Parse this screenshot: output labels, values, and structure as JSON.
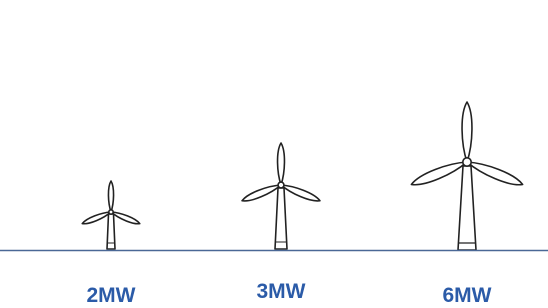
{
  "labels": [
    "2MW",
    "3MW",
    "6MW"
  ]
}
